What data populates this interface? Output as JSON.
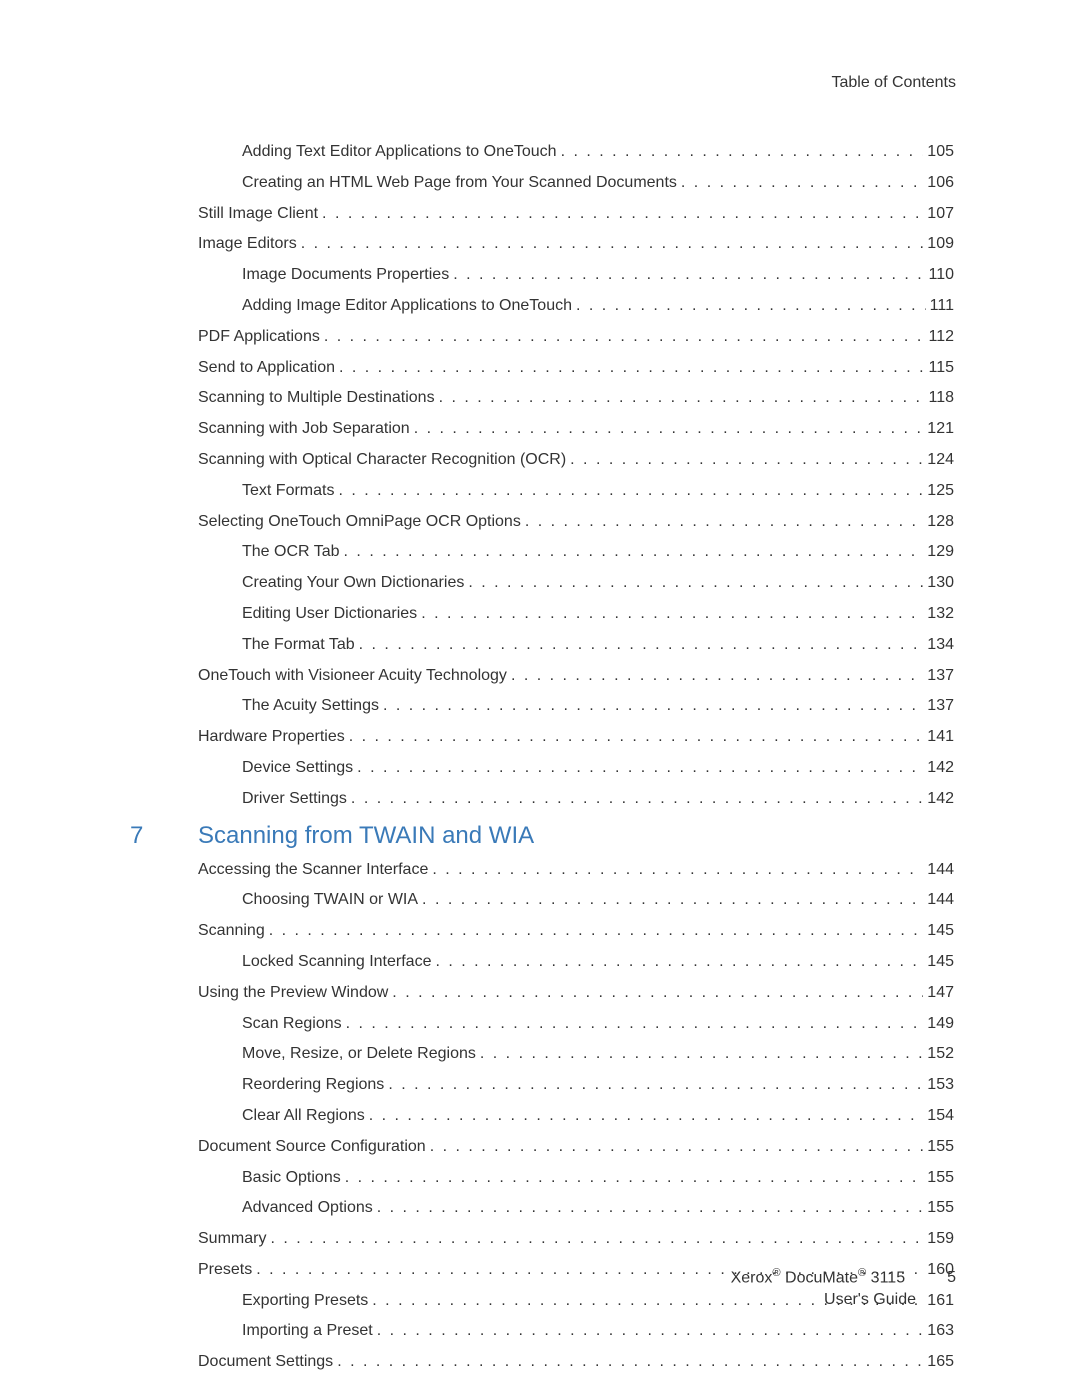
{
  "header": {
    "label": "Table of Contents"
  },
  "entries": [
    {
      "level": 2,
      "title": "Adding Text Editor Applications to OneTouch",
      "page": "105"
    },
    {
      "level": 2,
      "title": "Creating an HTML Web Page from Your Scanned Documents",
      "page": "106"
    },
    {
      "level": 1,
      "title": "Still Image Client",
      "page": "107"
    },
    {
      "level": 1,
      "title": "Image Editors",
      "page": "109"
    },
    {
      "level": 2,
      "title": "Image Documents Properties",
      "page": "110"
    },
    {
      "level": 2,
      "title": "Adding Image Editor Applications to OneTouch",
      "page": "111"
    },
    {
      "level": 1,
      "title": "PDF Applications",
      "page": "112"
    },
    {
      "level": 1,
      "title": "Send to Application",
      "page": "115"
    },
    {
      "level": 1,
      "title": "Scanning to Multiple Destinations",
      "page": "118"
    },
    {
      "level": 1,
      "title": "Scanning with Job Separation",
      "page": "121"
    },
    {
      "level": 1,
      "title": "Scanning with Optical Character Recognition (OCR)",
      "page": "124"
    },
    {
      "level": 2,
      "title": "Text Formats",
      "page": "125"
    },
    {
      "level": 1,
      "title": "Selecting OneTouch OmniPage OCR Options",
      "page": "128"
    },
    {
      "level": 2,
      "title": "The OCR Tab",
      "page": "129"
    },
    {
      "level": 2,
      "title": "Creating Your Own Dictionaries",
      "page": "130"
    },
    {
      "level": 2,
      "title": "Editing User Dictionaries",
      "page": "132"
    },
    {
      "level": 2,
      "title": "The Format Tab",
      "page": "134"
    },
    {
      "level": 1,
      "title": "OneTouch with Visioneer Acuity Technology",
      "page": "137"
    },
    {
      "level": 2,
      "title": "The Acuity Settings",
      "page": "137"
    },
    {
      "level": 1,
      "title": "Hardware Properties",
      "page": "141"
    },
    {
      "level": 2,
      "title": "Device Settings",
      "page": "142"
    },
    {
      "level": 2,
      "title": "Driver Settings",
      "page": "142"
    }
  ],
  "chapter": {
    "number": "7",
    "title": "Scanning from TWAIN and WIA"
  },
  "entries2": [
    {
      "level": 1,
      "title": "Accessing the Scanner Interface",
      "page": "144"
    },
    {
      "level": 2,
      "title": "Choosing TWAIN or WIA",
      "page": "144"
    },
    {
      "level": 1,
      "title": "Scanning",
      "page": "145"
    },
    {
      "level": 2,
      "title": "Locked Scanning Interface",
      "page": "145"
    },
    {
      "level": 1,
      "title": "Using the Preview Window",
      "page": "147"
    },
    {
      "level": 2,
      "title": "Scan Regions",
      "page": "149"
    },
    {
      "level": 2,
      "title": "Move, Resize, or Delete Regions",
      "page": "152"
    },
    {
      "level": 2,
      "title": "Reordering Regions",
      "page": "153"
    },
    {
      "level": 2,
      "title": "Clear All Regions",
      "page": "154"
    },
    {
      "level": 1,
      "title": "Document Source Configuration",
      "page": "155"
    },
    {
      "level": 2,
      "title": "Basic Options",
      "page": "155"
    },
    {
      "level": 2,
      "title": "Advanced Options",
      "page": "155"
    },
    {
      "level": 1,
      "title": "Summary",
      "page": "159"
    },
    {
      "level": 1,
      "title": "Presets",
      "page": "160"
    },
    {
      "level": 2,
      "title": "Exporting Presets",
      "page": "161"
    },
    {
      "level": 2,
      "title": "Importing a Preset",
      "page": "163"
    },
    {
      "level": 1,
      "title": "Document Settings",
      "page": "165"
    }
  ],
  "footer": {
    "brand_prefix": "Xerox",
    "reg1": "®",
    "product": " DocuMate",
    "reg2": "®",
    "model": " 3115",
    "subtitle": "User's Guide",
    "page_number": "5"
  },
  "colors": {
    "link_color": "#3a7ab8",
    "text_color": "#333333",
    "background": "#ffffff"
  }
}
